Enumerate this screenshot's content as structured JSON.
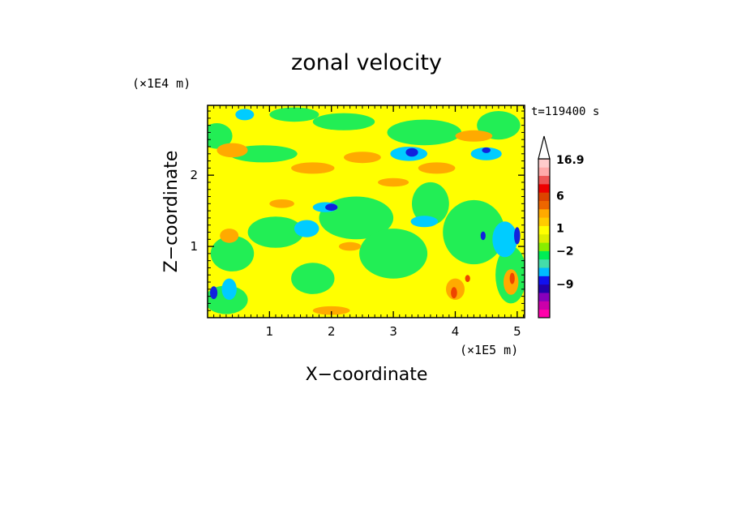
{
  "chart_data": {
    "type": "heatmap",
    "title": "zonal velocity",
    "xlabel": "X−coordinate",
    "ylabel": "Z−coordinate",
    "x_unit": "(×1E5 m)",
    "y_unit": "(×1E4 m)",
    "time_label": "t=119400 s",
    "x_ticks": [
      "1",
      "2",
      "3",
      "4",
      "5"
    ],
    "x_tick_values": [
      1,
      2,
      3,
      4,
      5
    ],
    "y_ticks": [
      "1",
      "2"
    ],
    "y_tick_values": [
      1,
      2
    ],
    "xlim": [
      0,
      5.12
    ],
    "ylim": [
      0,
      2.98
    ],
    "colorbar": {
      "labels": [
        "16.9",
        "6",
        "1",
        "−2",
        "−9"
      ],
      "label_values": [
        16.9,
        6,
        1,
        -2,
        -9
      ],
      "colors": [
        "#ff00aa",
        "#cc00aa",
        "#8800bb",
        "#2200aa",
        "#1111ee",
        "#00bbff",
        "#44ddaa",
        "#00ee55",
        "#88ee00",
        "#ddee00",
        "#ffff00",
        "#ffcc00",
        "#ffaa00",
        "#ee6600",
        "#dd4400",
        "#ee0000",
        "#ee5555",
        "#ffaaaa",
        "#ffcccc"
      ]
    },
    "contours": [
      {
        "level": "green",
        "color": "#22ee55",
        "blobs": [
          [
            0.15,
            2.55,
            0.25,
            0.18
          ],
          [
            0.9,
            2.3,
            0.55,
            0.12
          ],
          [
            1.1,
            1.2,
            0.45,
            0.22
          ],
          [
            2.4,
            1.4,
            0.6,
            0.3
          ],
          [
            3.0,
            0.9,
            0.55,
            0.35
          ],
          [
            4.3,
            1.2,
            0.5,
            0.45
          ],
          [
            0.4,
            0.9,
            0.35,
            0.25
          ],
          [
            3.5,
            2.6,
            0.6,
            0.18
          ],
          [
            2.2,
            2.75,
            0.5,
            0.12
          ],
          [
            4.7,
            2.7,
            0.35,
            0.2
          ],
          [
            0.3,
            0.25,
            0.35,
            0.2
          ],
          [
            1.7,
            0.55,
            0.35,
            0.22
          ],
          [
            3.6,
            1.6,
            0.3,
            0.3
          ],
          [
            4.9,
            0.6,
            0.25,
            0.4
          ],
          [
            1.4,
            2.85,
            0.4,
            0.1
          ]
        ]
      },
      {
        "level": "cyan",
        "color": "#00ccff",
        "blobs": [
          [
            3.25,
            2.3,
            0.3,
            0.1
          ],
          [
            1.6,
            1.25,
            0.2,
            0.12
          ],
          [
            3.5,
            1.35,
            0.22,
            0.08
          ],
          [
            4.8,
            1.1,
            0.2,
            0.25
          ],
          [
            4.5,
            2.3,
            0.25,
            0.09
          ],
          [
            0.35,
            0.4,
            0.12,
            0.15
          ],
          [
            1.9,
            1.55,
            0.2,
            0.07
          ],
          [
            0.6,
            2.85,
            0.15,
            0.08
          ]
        ]
      },
      {
        "level": "blue",
        "color": "#1122dd",
        "blobs": [
          [
            3.3,
            2.32,
            0.1,
            0.06
          ],
          [
            2.0,
            1.55,
            0.1,
            0.05
          ],
          [
            4.5,
            2.35,
            0.07,
            0.04
          ],
          [
            5.0,
            1.15,
            0.05,
            0.12
          ],
          [
            0.1,
            0.35,
            0.06,
            0.09
          ],
          [
            4.45,
            1.15,
            0.04,
            0.06
          ]
        ]
      },
      {
        "level": "orange",
        "color": "#ffaa00",
        "blobs": [
          [
            0.4,
            2.35,
            0.25,
            0.1
          ],
          [
            1.7,
            2.1,
            0.35,
            0.08
          ],
          [
            2.5,
            2.25,
            0.3,
            0.08
          ],
          [
            3.7,
            2.1,
            0.3,
            0.08
          ],
          [
            4.3,
            2.55,
            0.3,
            0.08
          ],
          [
            0.35,
            1.15,
            0.15,
            0.1
          ],
          [
            4.0,
            0.4,
            0.15,
            0.15
          ],
          [
            4.9,
            0.5,
            0.12,
            0.18
          ],
          [
            3.0,
            1.9,
            0.25,
            0.06
          ],
          [
            2.0,
            0.1,
            0.3,
            0.06
          ],
          [
            1.2,
            1.6,
            0.2,
            0.06
          ],
          [
            2.3,
            1.0,
            0.18,
            0.06
          ]
        ]
      },
      {
        "level": "red",
        "color": "#ee4400",
        "blobs": [
          [
            3.98,
            0.35,
            0.05,
            0.08
          ],
          [
            4.92,
            0.55,
            0.04,
            0.08
          ],
          [
            4.2,
            0.55,
            0.04,
            0.05
          ]
        ]
      }
    ]
  }
}
